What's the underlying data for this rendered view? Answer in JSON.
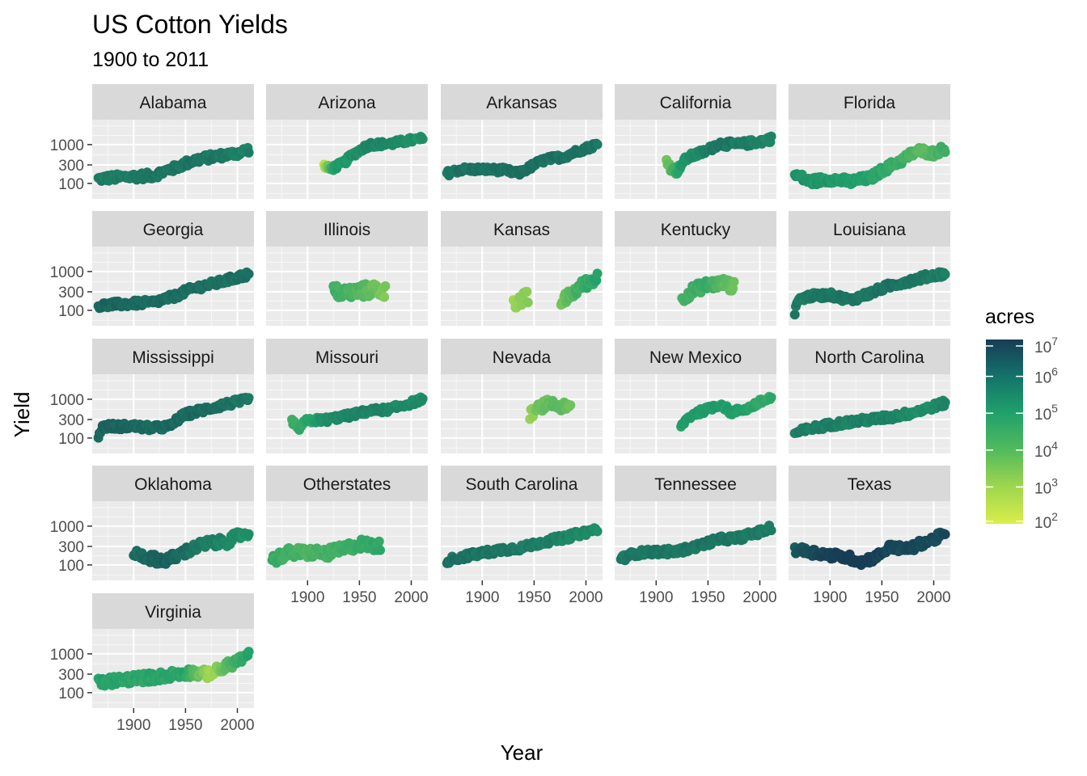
{
  "chart_data": {
    "type": "scatter",
    "title": "US Cotton Yields",
    "subtitle": "1900 to 2011",
    "xlabel": "Year",
    "ylabel": "Yield",
    "x_ticks": [
      1900,
      1950,
      2000
    ],
    "x_ticklabels": [
      "1900",
      "1950",
      "2000"
    ],
    "xlim": [
      1860,
      2016
    ],
    "y_scale": "log10",
    "y_ticks": [
      100,
      300,
      1000
    ],
    "y_ticklabels": [
      "100",
      "300",
      "1000"
    ],
    "ylim": [
      40,
      4400
    ],
    "color_legend": {
      "title": "acres",
      "scale": "log10",
      "ticks": [
        "10^7",
        "10^6",
        "10^5",
        "10^4",
        "10^3",
        "10^2"
      ],
      "tick_bases": [
        "10",
        "10",
        "10",
        "10",
        "10",
        "10"
      ],
      "tick_exponents": [
        "7",
        "6",
        "5",
        "4",
        "3",
        "2"
      ],
      "low_color": "#d9ee4a",
      "mid_color": "#21a06b",
      "high_color": "#173d56"
    },
    "panels": [
      {
        "name": "Alabama",
        "start": 1866,
        "end": 2011,
        "anchors": [
          [
            1866,
            130
          ],
          [
            1880,
            140
          ],
          [
            1900,
            150
          ],
          [
            1920,
            160
          ],
          [
            1940,
            250
          ],
          [
            1960,
            400
          ],
          [
            1980,
            500
          ],
          [
            2000,
            600
          ],
          [
            2011,
            750
          ]
        ],
        "acres": [
          [
            1866,
            5.7
          ],
          [
            1960,
            5.9
          ],
          [
            2011,
            5.6
          ]
        ],
        "jitter": 0.09
      },
      {
        "name": "Arizona",
        "start": 1916,
        "end": 2011,
        "anchors": [
          [
            1916,
            280
          ],
          [
            1922,
            230
          ],
          [
            1935,
            330
          ],
          [
            1950,
            700
          ],
          [
            1960,
            1000
          ],
          [
            1980,
            1050
          ],
          [
            2000,
            1300
          ],
          [
            2011,
            1400
          ]
        ],
        "acres": [
          [
            1916,
            2.5
          ],
          [
            1925,
            5.0
          ],
          [
            1960,
            5.6
          ],
          [
            2011,
            5.3
          ]
        ],
        "jitter": 0.07
      },
      {
        "name": "Arkansas",
        "start": 1866,
        "end": 2011,
        "anchors": [
          [
            1866,
            180
          ],
          [
            1880,
            230
          ],
          [
            1900,
            230
          ],
          [
            1920,
            220
          ],
          [
            1935,
            180
          ],
          [
            1945,
            250
          ],
          [
            1960,
            400
          ],
          [
            1980,
            500
          ],
          [
            2000,
            800
          ],
          [
            2011,
            1000
          ]
        ],
        "acres": [
          [
            1866,
            5.9
          ],
          [
            1960,
            6.0
          ],
          [
            2011,
            5.9
          ]
        ],
        "jitter": 0.07
      },
      {
        "name": "California",
        "start": 1910,
        "end": 2011,
        "anchors": [
          [
            1910,
            400
          ],
          [
            1914,
            250
          ],
          [
            1920,
            200
          ],
          [
            1930,
            450
          ],
          [
            1950,
            700
          ],
          [
            1960,
            1050
          ],
          [
            1980,
            1000
          ],
          [
            2000,
            1200
          ],
          [
            2011,
            1400
          ]
        ],
        "acres": [
          [
            1910,
            3.8
          ],
          [
            1925,
            5.2
          ],
          [
            1960,
            5.9
          ],
          [
            2011,
            5.5
          ]
        ],
        "jitter": 0.08
      },
      {
        "name": "Florida",
        "start": 1866,
        "end": 2011,
        "anchors": [
          [
            1866,
            170
          ],
          [
            1880,
            110
          ],
          [
            1900,
            130
          ],
          [
            1920,
            110
          ],
          [
            1940,
            140
          ],
          [
            1955,
            250
          ],
          [
            1970,
            400
          ],
          [
            1985,
            700
          ],
          [
            2000,
            600
          ],
          [
            2011,
            800
          ]
        ],
        "acres": [
          [
            1866,
            5.3
          ],
          [
            1930,
            5.0
          ],
          [
            1970,
            4.5
          ],
          [
            1990,
            4.0
          ],
          [
            2011,
            4.6
          ]
        ],
        "jitter": 0.1
      },
      {
        "name": "Georgia",
        "start": 1866,
        "end": 2011,
        "anchors": [
          [
            1866,
            130
          ],
          [
            1880,
            140
          ],
          [
            1900,
            150
          ],
          [
            1920,
            160
          ],
          [
            1940,
            230
          ],
          [
            1960,
            380
          ],
          [
            1980,
            500
          ],
          [
            2000,
            700
          ],
          [
            2011,
            850
          ]
        ],
        "acres": [
          [
            1866,
            6.2
          ],
          [
            1960,
            6.0
          ],
          [
            2011,
            6.0
          ]
        ],
        "jitter": 0.08
      },
      {
        "name": "Illinois",
        "start": 1925,
        "end": 1975,
        "anchors": [
          [
            1925,
            300
          ],
          [
            1940,
            280
          ],
          [
            1955,
            320
          ],
          [
            1965,
            350
          ],
          [
            1975,
            300
          ]
        ],
        "acres": [
          [
            1925,
            4.5
          ],
          [
            1950,
            4.2
          ],
          [
            1975,
            3.5
          ]
        ],
        "jitter": 0.18
      },
      {
        "name": "Kansas",
        "start": 1930,
        "end": 2011,
        "anchors": [
          [
            1930,
            180
          ],
          [
            1937,
            180
          ],
          [
            1944,
            200
          ]
        ],
        "acres": [
          [
            1930,
            3.0
          ],
          [
            1944,
            3.4
          ]
        ],
        "jitter": 0.2
      },
      {
        "name": "Kentucky",
        "start": 1925,
        "end": 1975,
        "anchors": [
          [
            1925,
            200
          ],
          [
            1935,
            320
          ],
          [
            1950,
            450
          ],
          [
            1965,
            500
          ],
          [
            1975,
            400
          ]
        ],
        "acres": [
          [
            1925,
            4.4
          ],
          [
            1950,
            4.6
          ],
          [
            1975,
            3.7
          ]
        ],
        "jitter": 0.14
      },
      {
        "name": "Louisiana",
        "start": 1866,
        "end": 2011,
        "anchors": [
          [
            1866,
            70
          ],
          [
            1868,
            180
          ],
          [
            1880,
            230
          ],
          [
            1900,
            250
          ],
          [
            1920,
            180
          ],
          [
            1940,
            280
          ],
          [
            1960,
            450
          ],
          [
            1980,
            600
          ],
          [
            2000,
            800
          ],
          [
            2011,
            900
          ]
        ],
        "acres": [
          [
            1866,
            5.8
          ],
          [
            1960,
            5.9
          ],
          [
            2011,
            5.7
          ]
        ],
        "jitter": 0.08
      },
      {
        "name": "Mississippi",
        "start": 1866,
        "end": 2011,
        "anchors": [
          [
            1866,
            90
          ],
          [
            1870,
            200
          ],
          [
            1900,
            200
          ],
          [
            1920,
            180
          ],
          [
            1935,
            200
          ],
          [
            1950,
            400
          ],
          [
            1970,
            550
          ],
          [
            1990,
            750
          ],
          [
            2011,
            950
          ]
        ],
        "acres": [
          [
            1866,
            6.2
          ],
          [
            1960,
            6.1
          ],
          [
            2011,
            5.8
          ]
        ],
        "jitter": 0.08
      },
      {
        "name": "Missouri",
        "start": 1885,
        "end": 2011,
        "anchors": [
          [
            1885,
            290
          ],
          [
            1890,
            160
          ],
          [
            1900,
            280
          ],
          [
            1920,
            300
          ],
          [
            1940,
            380
          ],
          [
            1960,
            500
          ],
          [
            1980,
            550
          ],
          [
            2000,
            800
          ],
          [
            2011,
            1000
          ]
        ],
        "acres": [
          [
            1885,
            4.5
          ],
          [
            1920,
            5.4
          ],
          [
            1960,
            5.6
          ],
          [
            2011,
            5.4
          ]
        ],
        "jitter": 0.07
      },
      {
        "name": "Nevada",
        "start": 1946,
        "end": 1985,
        "anchors": [
          [
            1946,
            400
          ],
          [
            1955,
            600
          ],
          [
            1965,
            800
          ],
          [
            1975,
            650
          ],
          [
            1985,
            600
          ]
        ],
        "acres": [
          [
            1946,
            3.0
          ],
          [
            1955,
            3.8
          ],
          [
            1975,
            4.0
          ],
          [
            1985,
            3.8
          ]
        ],
        "jitter": 0.12
      },
      {
        "name": "New Mexico",
        "start": 1924,
        "end": 2011,
        "anchors": [
          [
            1924,
            200
          ],
          [
            1935,
            400
          ],
          [
            1950,
            550
          ],
          [
            1962,
            750
          ],
          [
            1972,
            450
          ],
          [
            1990,
            600
          ],
          [
            2011,
            1100
          ]
        ],
        "acres": [
          [
            1924,
            5.0
          ],
          [
            1950,
            5.2
          ],
          [
            2011,
            4.7
          ]
        ],
        "jitter": 0.07
      },
      {
        "name": "North Carolina",
        "start": 1866,
        "end": 2011,
        "anchors": [
          [
            1866,
            130
          ],
          [
            1880,
            170
          ],
          [
            1900,
            220
          ],
          [
            1920,
            260
          ],
          [
            1940,
            300
          ],
          [
            1960,
            350
          ],
          [
            1980,
            450
          ],
          [
            2000,
            650
          ],
          [
            2011,
            800
          ]
        ],
        "acres": [
          [
            1866,
            5.7
          ],
          [
            1960,
            5.6
          ],
          [
            1990,
            5.3
          ],
          [
            2011,
            5.6
          ]
        ],
        "jitter": 0.08
      },
      {
        "name": "Oklahoma",
        "start": 1900,
        "end": 2011,
        "anchors": [
          [
            1900,
            200
          ],
          [
            1915,
            150
          ],
          [
            1930,
            130
          ],
          [
            1940,
            160
          ],
          [
            1950,
            220
          ],
          [
            1970,
            350
          ],
          [
            1990,
            400
          ],
          [
            2011,
            700
          ]
        ],
        "acres": [
          [
            1900,
            6.0
          ],
          [
            1930,
            6.3
          ],
          [
            1970,
            5.7
          ],
          [
            2011,
            5.3
          ]
        ],
        "jitter": 0.12
      },
      {
        "name": "Otherstates",
        "start": 1866,
        "end": 1970,
        "anchors": [
          [
            1866,
            130
          ],
          [
            1880,
            200
          ],
          [
            1900,
            210
          ],
          [
            1920,
            200
          ],
          [
            1935,
            250
          ],
          [
            1950,
            350
          ],
          [
            1970,
            300
          ]
        ],
        "acres": [
          [
            1866,
            4.6
          ],
          [
            1900,
            4.3
          ],
          [
            1930,
            4.5
          ],
          [
            1970,
            4.7
          ]
        ],
        "jitter": 0.14
      },
      {
        "name": "South Carolina",
        "start": 1866,
        "end": 2011,
        "anchors": [
          [
            1866,
            130
          ],
          [
            1880,
            160
          ],
          [
            1900,
            200
          ],
          [
            1920,
            250
          ],
          [
            1940,
            280
          ],
          [
            1960,
            400
          ],
          [
            1980,
            500
          ],
          [
            2000,
            700
          ],
          [
            2011,
            850
          ]
        ],
        "acres": [
          [
            1866,
            6.0
          ],
          [
            1960,
            5.7
          ],
          [
            2011,
            5.4
          ]
        ],
        "jitter": 0.08
      },
      {
        "name": "Tennessee",
        "start": 1866,
        "end": 2011,
        "anchors": [
          [
            1866,
            140
          ],
          [
            1880,
            200
          ],
          [
            1900,
            220
          ],
          [
            1920,
            220
          ],
          [
            1940,
            300
          ],
          [
            1960,
            450
          ],
          [
            1980,
            500
          ],
          [
            2000,
            700
          ],
          [
            2011,
            900
          ]
        ],
        "acres": [
          [
            1866,
            5.8
          ],
          [
            1960,
            5.9
          ],
          [
            2011,
            5.7
          ]
        ],
        "jitter": 0.08
      },
      {
        "name": "Texas",
        "start": 1866,
        "end": 2011,
        "anchors": [
          [
            1866,
            250
          ],
          [
            1880,
            220
          ],
          [
            1900,
            180
          ],
          [
            1920,
            150
          ],
          [
            1930,
            120
          ],
          [
            1945,
            160
          ],
          [
            1960,
            300
          ],
          [
            1970,
            250
          ],
          [
            1980,
            280
          ],
          [
            1990,
            380
          ],
          [
            2000,
            450
          ],
          [
            2011,
            650
          ]
        ],
        "acres": [
          [
            1866,
            6.5
          ],
          [
            1920,
            7.2
          ],
          [
            1960,
            6.8
          ],
          [
            2011,
            6.7
          ]
        ],
        "jitter": 0.1
      },
      {
        "name": "Virginia",
        "start": 1866,
        "end": 2011,
        "anchors": [
          [
            1866,
            180
          ],
          [
            1880,
            200
          ],
          [
            1900,
            230
          ],
          [
            1920,
            250
          ],
          [
            1940,
            300
          ],
          [
            1955,
            330
          ],
          [
            1970,
            300
          ],
          [
            1985,
            400
          ],
          [
            2000,
            650
          ],
          [
            2011,
            900
          ]
        ],
        "acres": [
          [
            1866,
            4.9
          ],
          [
            1950,
            4.8
          ],
          [
            1965,
            3.6
          ],
          [
            1975,
            2.8
          ],
          [
            1990,
            4.2
          ],
          [
            2011,
            4.9
          ]
        ],
        "jitter": 0.12
      }
    ]
  }
}
